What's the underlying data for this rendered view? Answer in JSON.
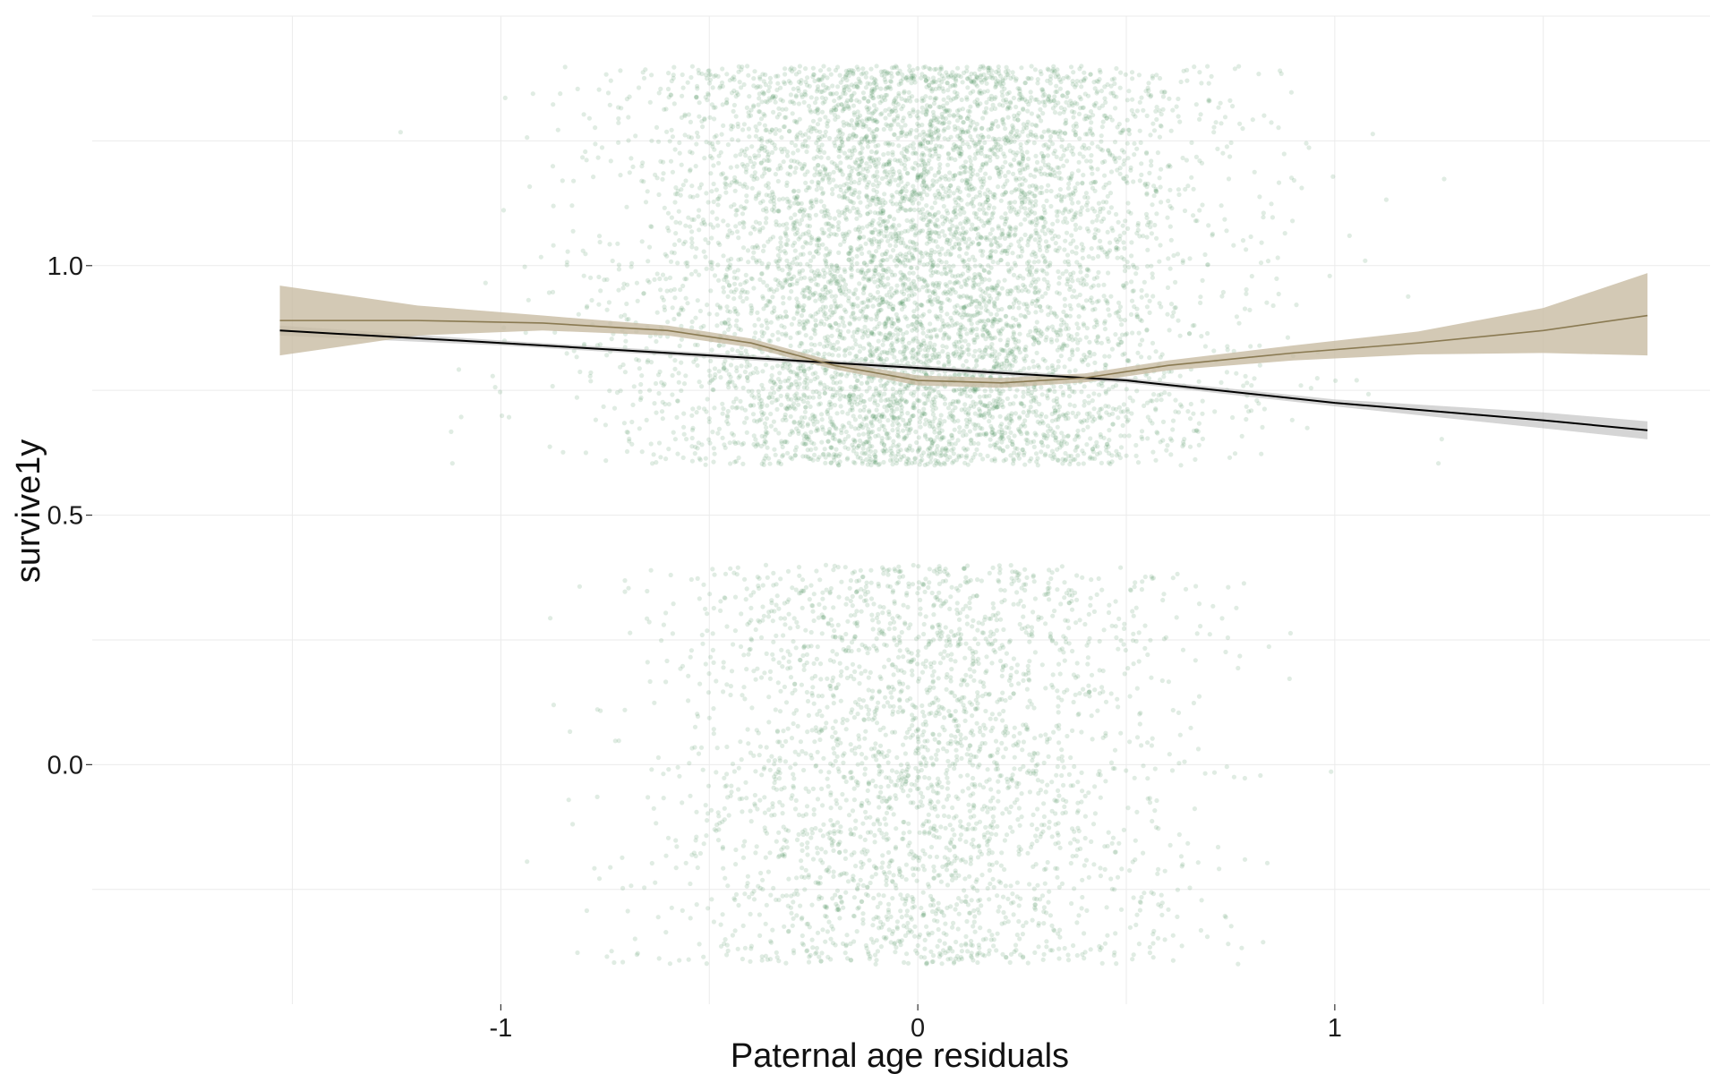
{
  "chart_data": {
    "type": "scatter",
    "title": "",
    "xlabel": "Paternal age residuals",
    "ylabel": "survive1y",
    "xlim": [
      -1.98,
      1.9
    ],
    "ylim": [
      -0.48,
      1.5
    ],
    "x_ticks": [
      -1,
      0,
      1
    ],
    "x_tick_labels": [
      "-1",
      "0",
      "1"
    ],
    "y_ticks": [
      0.0,
      0.5,
      1.0
    ],
    "y_tick_labels": [
      "0.0",
      "0.5",
      "1.0"
    ],
    "grid": true,
    "legend": "none",
    "colors": {
      "points": "#3f8a4f",
      "linear_line": "#000000",
      "linear_band": "#b9b9b9",
      "smooth_line": "#8a7a52",
      "smooth_band": "#c8bca2",
      "grid": "#ebebeb",
      "tick_text": "#1a1a1a"
    },
    "scatter_groups": [
      {
        "outcome": 1,
        "y_jitter_range": [
          0.6,
          1.4
        ],
        "x_center": 0.0,
        "x_sd": 0.33,
        "approx_points_shown": 7000
      },
      {
        "outcome": 0,
        "y_jitter_range": [
          -0.4,
          0.4
        ],
        "x_center": 0.0,
        "x_sd": 0.3,
        "approx_points_shown": 2800
      }
    ],
    "series": [
      {
        "kind": "linear-fit",
        "x": [
          -1.53,
          -1.0,
          -0.5,
          0.0,
          0.5,
          1.0,
          1.5,
          1.75
        ],
        "y": [
          0.87,
          0.845,
          0.82,
          0.795,
          0.77,
          0.725,
          0.69,
          0.67
        ],
        "ci_lower": [
          0.86,
          0.84,
          0.815,
          0.79,
          0.765,
          0.718,
          0.674,
          0.652
        ],
        "ci_upper": [
          0.88,
          0.85,
          0.825,
          0.8,
          0.775,
          0.732,
          0.706,
          0.688
        ]
      },
      {
        "kind": "smooth-fit",
        "x": [
          -1.53,
          -1.2,
          -0.9,
          -0.6,
          -0.4,
          -0.2,
          0.0,
          0.2,
          0.4,
          0.6,
          0.9,
          1.2,
          1.5,
          1.75
        ],
        "y": [
          0.89,
          0.89,
          0.885,
          0.87,
          0.845,
          0.8,
          0.77,
          0.765,
          0.775,
          0.8,
          0.825,
          0.845,
          0.87,
          0.9
        ],
        "ci_lower": [
          0.82,
          0.86,
          0.87,
          0.86,
          0.836,
          0.792,
          0.76,
          0.755,
          0.766,
          0.79,
          0.81,
          0.822,
          0.825,
          0.82
        ],
        "ci_upper": [
          0.96,
          0.92,
          0.9,
          0.88,
          0.854,
          0.808,
          0.78,
          0.775,
          0.784,
          0.81,
          0.84,
          0.868,
          0.915,
          0.985
        ]
      }
    ]
  }
}
